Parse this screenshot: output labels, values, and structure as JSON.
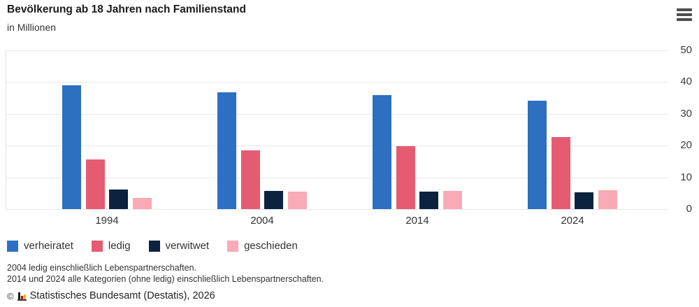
{
  "header": {
    "title": "Bevölkerung ab 18 Jahren nach Familienstand",
    "subtitle": "in Millionen"
  },
  "menu": {
    "icon": "hamburger-menu-icon"
  },
  "chart_data": {
    "type": "bar",
    "title": "Bevölkerung ab 18 Jahren nach Familienstand",
    "unit_label": "in Millionen",
    "categories": [
      "1994",
      "2004",
      "2014",
      "2024"
    ],
    "series": [
      {
        "name": "verheiratet",
        "color": "#2d6fc1",
        "values": [
          39.0,
          36.7,
          35.9,
          34.2
        ]
      },
      {
        "name": "ledig",
        "color": "#e55c72",
        "values": [
          15.6,
          18.6,
          19.9,
          22.6
        ]
      },
      {
        "name": "verwitwet",
        "color": "#0c2340",
        "values": [
          6.1,
          5.8,
          5.4,
          5.3
        ]
      },
      {
        "name": "geschieden",
        "color": "#f9aab6",
        "values": [
          3.6,
          5.4,
          5.7,
          5.9
        ]
      }
    ],
    "ylim": [
      0,
      50
    ],
    "yticks": [
      0,
      10,
      20,
      30,
      40,
      50
    ],
    "grid": true,
    "y_axis_side": "right",
    "legend_position": "bottom"
  },
  "footnotes": [
    "2004 ledig einschließlich Lebenspartnerschaften.",
    "2014 und 2024 alle Kategorien (ohne ledig) einschließlich Lebenspartnerschaften."
  ],
  "source": {
    "copyright": "©",
    "text": "Statistisches Bundesamt (Destatis), 2026"
  },
  "colors": {
    "grid": "#e8e8e8",
    "text_dark": "#1a1a1a",
    "text_medium": "#333333",
    "menu_icon": "#4d4d4d"
  }
}
